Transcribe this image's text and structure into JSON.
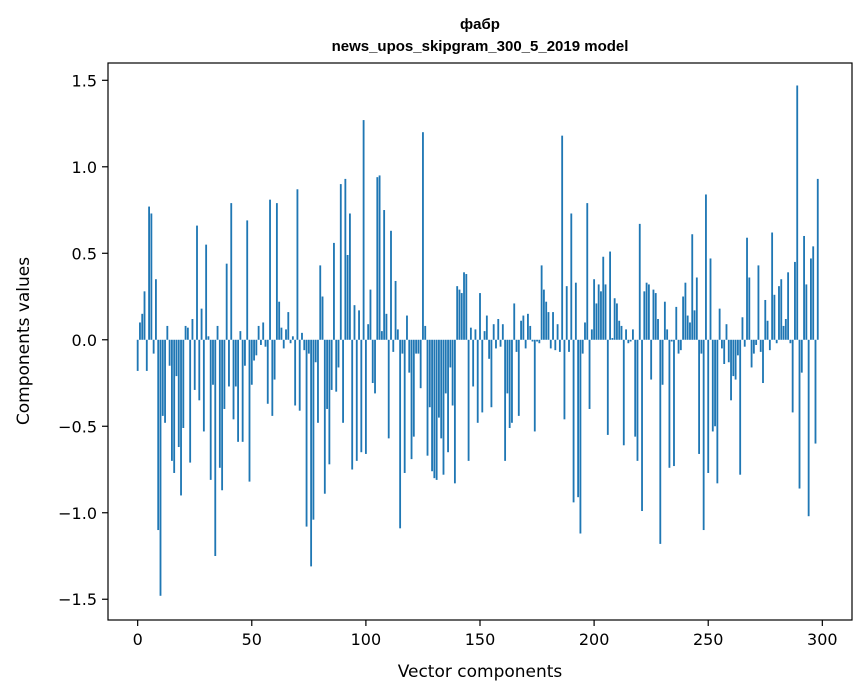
{
  "chart_data": {
    "type": "bar",
    "title": "фабр",
    "subtitle": "news_upos_skipgram_300_5_2019 model",
    "xlabel": "Vector components",
    "ylabel": "Components values",
    "xlim": [
      -13,
      313
    ],
    "ylim": [
      -1.62,
      1.6
    ],
    "x_ticks": [
      0,
      50,
      100,
      150,
      200,
      250,
      300
    ],
    "x_tick_labels": [
      "0",
      "50",
      "100",
      "150",
      "200",
      "250",
      "300"
    ],
    "y_ticks": [
      -1.5,
      -1.0,
      -0.5,
      0.0,
      0.5,
      1.0,
      1.5
    ],
    "y_tick_labels": [
      "−1.5",
      "−1.0",
      "−0.5",
      "0.0",
      "0.5",
      "1.0",
      "1.5"
    ],
    "grid": false,
    "bar_color": "#1f77b4",
    "values": [
      -0.18,
      0.1,
      0.15,
      0.28,
      -0.18,
      0.77,
      0.73,
      -0.08,
      0.35,
      -1.1,
      -1.48,
      -0.44,
      -0.48,
      0.08,
      -0.15,
      -0.7,
      -0.77,
      -0.21,
      -0.62,
      -0.9,
      -0.51,
      0.08,
      0.07,
      -0.71,
      0.12,
      -0.29,
      0.66,
      -0.35,
      0.18,
      -0.53,
      0.55,
      0.02,
      -0.81,
      -0.26,
      -1.25,
      0.08,
      -0.74,
      -0.87,
      -0.4,
      0.44,
      -0.27,
      0.79,
      -0.46,
      -0.27,
      -0.59,
      0.05,
      -0.59,
      -0.15,
      0.69,
      -0.82,
      -0.26,
      -0.12,
      -0.09,
      0.08,
      -0.03,
      0.1,
      -0.04,
      -0.37,
      0.81,
      -0.44,
      -0.23,
      0.79,
      0.22,
      0.07,
      -0.05,
      0.06,
      0.16,
      -0.02,
      0.02,
      -0.38,
      0.87,
      -0.41,
      0.04,
      -0.06,
      -1.08,
      -0.08,
      -1.31,
      -1.04,
      -0.13,
      -0.48,
      0.43,
      0.25,
      -0.89,
      -0.4,
      -0.72,
      -0.29,
      0.56,
      -0.3,
      -0.16,
      0.9,
      -0.48,
      0.93,
      0.49,
      0.73,
      -0.75,
      0.2,
      -0.7,
      0.17,
      -0.65,
      1.27,
      -0.66,
      0.09,
      0.29,
      -0.25,
      -0.31,
      0.94,
      0.95,
      0.05,
      0.75,
      0.15,
      -0.57,
      0.63,
      -0.07,
      0.34,
      0.06,
      -1.09,
      -0.08,
      -0.77,
      0.14,
      -0.19,
      -0.69,
      -0.56,
      -0.08,
      -0.08,
      -0.28,
      1.2,
      0.08,
      -0.67,
      -0.39,
      -0.76,
      -0.8,
      -0.81,
      -0.45,
      -0.57,
      -0.78,
      -0.31,
      -0.65,
      -0.16,
      -0.38,
      -0.83,
      0.31,
      0.29,
      0.27,
      0.39,
      0.38,
      -0.7,
      0.07,
      -0.27,
      0.06,
      -0.48,
      0.27,
      -0.42,
      0.05,
      0.14,
      -0.11,
      -0.39,
      0.09,
      -0.05,
      0.12,
      -0.04,
      0.09,
      -0.7,
      -0.31,
      -0.51,
      -0.48,
      0.21,
      -0.07,
      -0.44,
      0.11,
      0.14,
      -0.05,
      0.15,
      0.08,
      -0.01,
      -0.53,
      -0.01,
      -0.02,
      0.43,
      0.29,
      0.22,
      0.16,
      -0.05,
      0.16,
      -0.06,
      0.09,
      -0.07,
      1.18,
      -0.46,
      0.31,
      -0.07,
      0.73,
      -0.94,
      0.33,
      -0.91,
      -1.12,
      -0.08,
      0.1,
      0.79,
      -0.4,
      0.06,
      0.35,
      0.21,
      0.32,
      0.28,
      0.48,
      0.32,
      -0.55,
      0.51,
      0.01,
      0.24,
      0.21,
      0.11,
      0.08,
      -0.61,
      0.06,
      -0.02,
      -0.01,
      0.06,
      -0.56,
      -0.7,
      0.67,
      -0.99,
      0.28,
      0.33,
      0.32,
      -0.23,
      0.29,
      0.27,
      0.12,
      -1.18,
      -0.26,
      0.22,
      0.06,
      -0.74,
      -0.01,
      -0.73,
      0.19,
      -0.08,
      -0.06,
      0.25,
      0.33,
      0.14,
      0.1,
      0.61,
      0.17,
      0.36,
      -0.66,
      -0.08,
      -1.1,
      0.84,
      -0.77,
      0.47,
      -0.53,
      -0.5,
      -0.83,
      0.18,
      -0.05,
      -0.14,
      0.09,
      -0.13,
      -0.35,
      -0.21,
      -0.23,
      -0.09,
      -0.78,
      0.13,
      -0.04,
      0.59,
      0.36,
      -0.16,
      -0.08,
      -0.03,
      0.43,
      -0.07,
      -0.25,
      0.23,
      0.11,
      -0.06,
      0.62,
      0.26,
      -0.02,
      0.31,
      0.35,
      0.08,
      0.12,
      0.39,
      -0.02,
      -0.42,
      0.45,
      1.47,
      -0.86,
      -0.19,
      0.6,
      0.32,
      -1.02,
      0.47,
      0.54,
      -0.6,
      0.93
    ]
  }
}
